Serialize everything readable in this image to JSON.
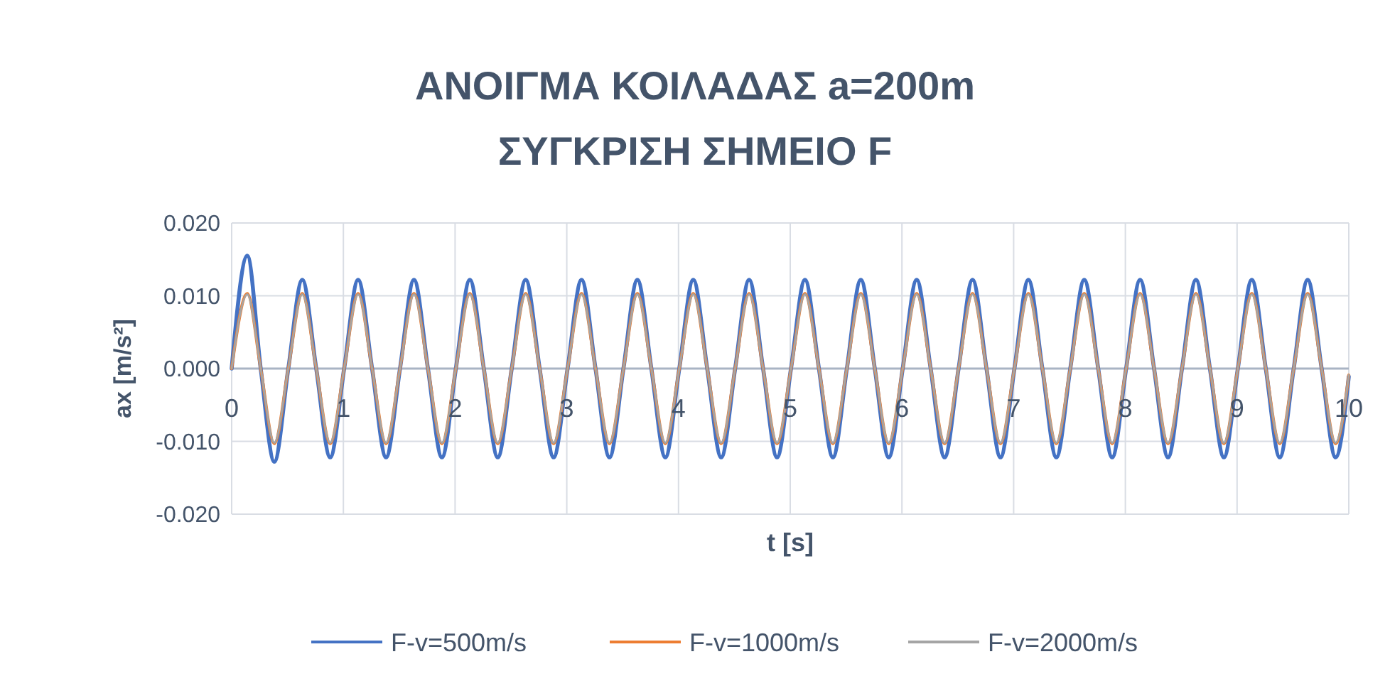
{
  "chart_data": {
    "type": "line",
    "title": "ΑΝΟΙΓΜΑ ΚΟΙΛΑΔΑΣ a=200m\nΣΥΓΚΡΙΣΗ ΣΗΜΕΙΟ F",
    "xlabel": "t [s]",
    "ylabel": "ax [m/s²]",
    "x": [
      0,
      0.14,
      0.26,
      0.382,
      0.507,
      0.632,
      0.757,
      0.882,
      1.007,
      1.132,
      1.257,
      1.382,
      1.507,
      1.632,
      1.757,
      1.882,
      2.007,
      2.132,
      2.257,
      2.382,
      2.507,
      2.632,
      2.757,
      2.882,
      3.007,
      3.132,
      3.257,
      3.382,
      3.507,
      3.632,
      3.757,
      3.882,
      4.007,
      4.132,
      4.257,
      4.382,
      4.507,
      4.632,
      4.757,
      4.882,
      5.007,
      5.132,
      5.257,
      5.382,
      5.507,
      5.632,
      5.757,
      5.882,
      6.007,
      6.132,
      6.257,
      6.382,
      6.507,
      6.632,
      6.757,
      6.882,
      7.007,
      7.132,
      7.257,
      7.382,
      7.507,
      7.632,
      7.757,
      7.882,
      8.007,
      8.132,
      8.257,
      8.382,
      8.507,
      8.632,
      8.757,
      8.882,
      9.007,
      9.132,
      9.257,
      9.382,
      9.507,
      9.632,
      9.757,
      9.882,
      10
    ],
    "series": [
      {
        "name": "F-v=500m/s",
        "color": "#4472c4",
        "values": [
          0,
          0.0155,
          0,
          -0.0128,
          0,
          0.0122,
          0,
          -0.0122,
          0,
          0.0122,
          0,
          -0.0122,
          0,
          0.0122,
          0,
          -0.0122,
          0,
          0.0122,
          0,
          -0.0122,
          0,
          0.0122,
          0,
          -0.0122,
          0,
          0.0122,
          0,
          -0.0122,
          0,
          0.0122,
          0,
          -0.0122,
          0,
          0.0122,
          0,
          -0.0122,
          0,
          0.0122,
          0,
          -0.0122,
          0,
          0.0122,
          0,
          -0.0122,
          0,
          0.0122,
          0,
          -0.0122,
          0,
          0.0122,
          0,
          -0.0122,
          0,
          0.0122,
          0,
          -0.0122,
          0,
          0.0122,
          0,
          -0.0122,
          0,
          0.0122,
          0,
          -0.0122,
          0,
          0.0122,
          0,
          -0.0122,
          0,
          0.0122,
          0,
          -0.0122,
          0,
          0.0122,
          0,
          -0.0122,
          0,
          0.0122,
          0,
          -0.0122,
          -0.0011
        ]
      },
      {
        "name": "F-v=1000m/s",
        "color": "#ed7d31",
        "values": [
          0,
          0.0103,
          0,
          -0.0103,
          0,
          0.0103,
          0,
          -0.0103,
          0,
          0.0103,
          0,
          -0.0103,
          0,
          0.0103,
          0,
          -0.0103,
          0,
          0.0103,
          0,
          -0.0103,
          0,
          0.0103,
          0,
          -0.0103,
          0,
          0.0103,
          0,
          -0.0103,
          0,
          0.0103,
          0,
          -0.0103,
          0,
          0.0103,
          0,
          -0.0103,
          0,
          0.0103,
          0,
          -0.0103,
          0,
          0.0103,
          0,
          -0.0103,
          0,
          0.0103,
          0,
          -0.0103,
          0,
          0.0103,
          0,
          -0.0103,
          0,
          0.0103,
          0,
          -0.0103,
          0,
          0.0103,
          0,
          -0.0103,
          0,
          0.0103,
          0,
          -0.0103,
          0,
          0.0103,
          0,
          -0.0103,
          0,
          0.0103,
          0,
          -0.0103,
          0,
          0.0103,
          0,
          -0.0103,
          0,
          0.0103,
          0,
          -0.0103,
          -0.0009
        ]
      },
      {
        "name": "F-v=2000m/s",
        "color": "#a5a5a5",
        "values": [
          0,
          0.0102,
          0,
          -0.0102,
          0,
          0.0102,
          0,
          -0.0102,
          0,
          0.0102,
          0,
          -0.0102,
          0,
          0.0102,
          0,
          -0.0102,
          0,
          0.0102,
          0,
          -0.0102,
          0,
          0.0102,
          0,
          -0.0102,
          0,
          0.0102,
          0,
          -0.0102,
          0,
          0.0102,
          0,
          -0.0102,
          0,
          0.0102,
          0,
          -0.0102,
          0,
          0.0102,
          0,
          -0.0102,
          0,
          0.0102,
          0,
          -0.0102,
          0,
          0.0102,
          0,
          -0.0102,
          0,
          0.0102,
          0,
          -0.0102,
          0,
          0.0102,
          0,
          -0.0102,
          0,
          0.0102,
          0,
          -0.0102,
          0,
          0.0102,
          0,
          -0.0102,
          0,
          0.0102,
          0,
          -0.0102,
          0,
          0.0102,
          0,
          -0.0102,
          0,
          0.0102,
          0,
          -0.0102,
          0,
          0.0102,
          0,
          -0.0102,
          -0.0009
        ]
      }
    ],
    "xlim": [
      0,
      10
    ],
    "xticks": [
      0,
      1,
      2,
      3,
      4,
      5,
      6,
      7,
      8,
      9,
      10
    ],
    "ylim": [
      -0.02,
      0.02
    ],
    "yticks": [
      {
        "value": -0.02,
        "label": "-0.020"
      },
      {
        "value": -0.01,
        "label": "-0.010"
      },
      {
        "value": 0,
        "label": "0.000"
      },
      {
        "value": 0.01,
        "label": "0.010"
      },
      {
        "value": 0.02,
        "label": "0.020"
      }
    ],
    "grid": true,
    "legend": "bottom",
    "marker": "none",
    "line_style": "solid"
  }
}
